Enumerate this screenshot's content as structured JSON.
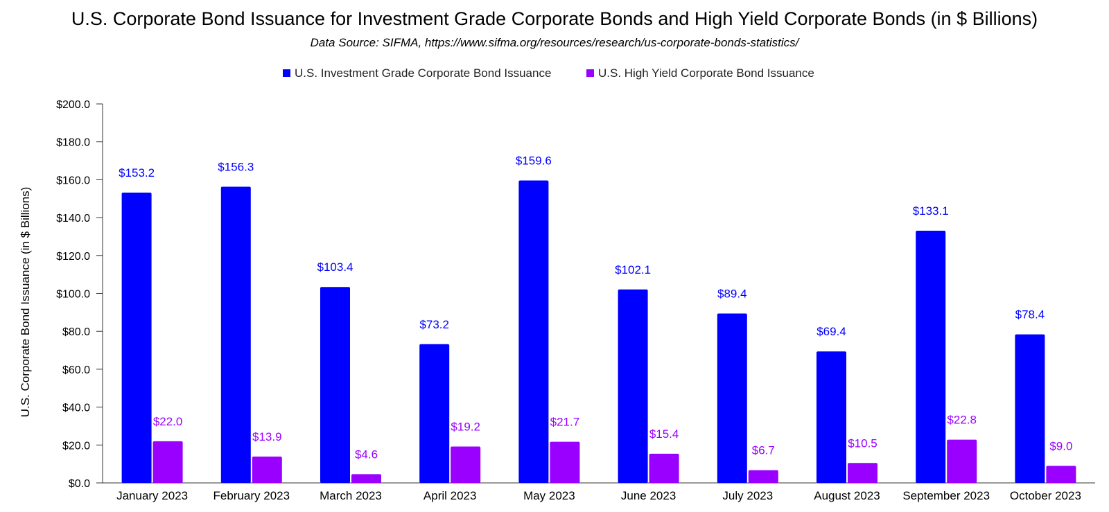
{
  "chart_data": {
    "type": "bar",
    "title": "U.S. Corporate Bond Issuance for Investment Grade Corporate Bonds and High Yield Corporate Bonds (in $ Billions)",
    "subtitle": "Data Source: SIFMA, https://www.sifma.org/resources/research/us-corporate-bonds-statistics/",
    "xlabel": "",
    "ylabel": "U.S. Corporate Bond Issuance (in $ Billions)",
    "ylim": [
      0,
      200
    ],
    "yticks": [
      0,
      20,
      40,
      60,
      80,
      100,
      120,
      140,
      160,
      180,
      200
    ],
    "ytick_labels": [
      "$0.0",
      "$20.0",
      "$40.0",
      "$60.0",
      "$80.0",
      "$100.0",
      "$120.0",
      "$140.0",
      "$160.0",
      "$180.0",
      "$200.0"
    ],
    "grid": false,
    "legend_position": "top",
    "categories": [
      "January 2023",
      "February 2023",
      "March 2023",
      "April 2023",
      "May 2023",
      "June 2023",
      "July 2023",
      "August 2023",
      "September 2023",
      "October 2023"
    ],
    "series": [
      {
        "name": "U.S. Investment Grade Corporate Bond Issuance",
        "color": "#0000ff",
        "values": [
          153.2,
          156.3,
          103.4,
          73.2,
          159.6,
          102.1,
          89.4,
          69.4,
          133.1,
          78.4
        ],
        "labels": [
          "$153.2",
          "$156.3",
          "$103.4",
          "$73.2",
          "$159.6",
          "$102.1",
          "$89.4",
          "$69.4",
          "$133.1",
          "$78.4"
        ]
      },
      {
        "name": "U.S. High Yield Corporate Bond Issuance",
        "color": "#9900ff",
        "values": [
          22.0,
          13.9,
          4.6,
          19.2,
          21.7,
          15.4,
          6.7,
          10.5,
          22.8,
          9.0
        ],
        "labels": [
          "$22.0",
          "$13.9",
          "$4.6",
          "$19.2",
          "$21.7",
          "$15.4",
          "$6.7",
          "$10.5",
          "$22.8",
          "$9.0"
        ]
      }
    ]
  }
}
